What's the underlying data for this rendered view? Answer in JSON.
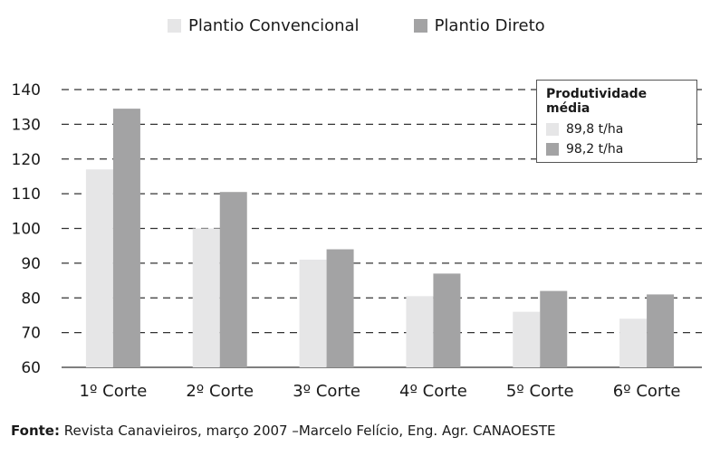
{
  "chart_data": {
    "type": "bar",
    "categories": [
      "1º Corte",
      "2º Corte",
      "3º Corte",
      "4º Corte",
      "5º Corte",
      "6º Corte"
    ],
    "series": [
      {
        "name": "Plantio Convencional",
        "color": "#e6e6e7",
        "values": [
          117,
          100,
          91,
          80.5,
          76,
          74
        ]
      },
      {
        "name": "Plantio Direto",
        "color": "#a3a3a4",
        "values": [
          134.5,
          110.5,
          94,
          87,
          82,
          81
        ]
      }
    ],
    "ylim": [
      60,
      140
    ],
    "yticks": [
      60,
      70,
      80,
      90,
      100,
      110,
      120,
      130,
      140
    ],
    "grid": "dashed horizontal",
    "legend": "top-center",
    "inset_legend": {
      "title": "Produtividade média",
      "entries": [
        "89,8 t/ha",
        "98,2 t/ha"
      ]
    }
  },
  "source": {
    "label": "Fonte:",
    "text": " Revista Canavieiros, março 2007 –Marcelo Felício, Eng. Agr. CANAOESTE"
  }
}
